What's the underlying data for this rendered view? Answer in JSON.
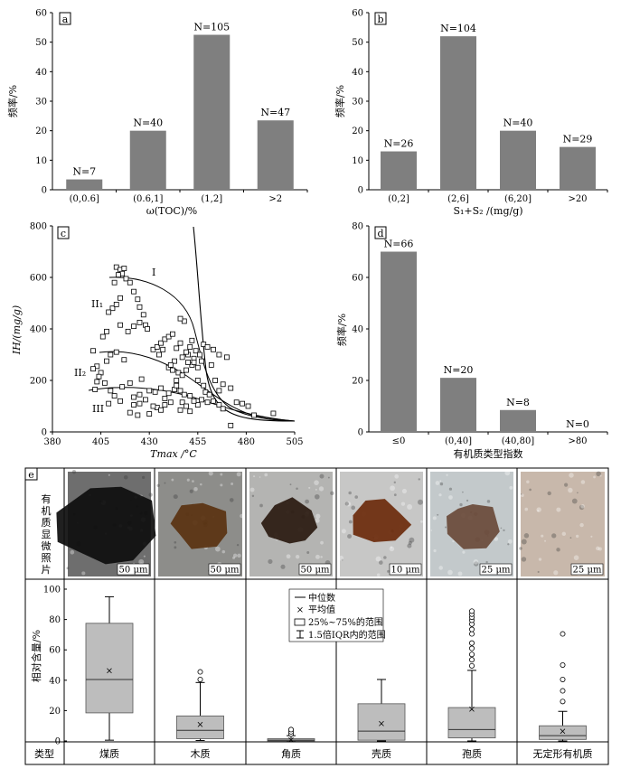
{
  "panels": {
    "a": {
      "label": "a",
      "chart_data": {
        "type": "bar",
        "categories": [
          "(0,0.6]",
          "(0.6,1]",
          "(1,2]",
          ">2"
        ],
        "values": [
          3.5,
          20.0,
          52.5,
          23.5
        ],
        "annotations": [
          "N=7",
          "N=40",
          "N=105",
          "N=47"
        ],
        "xlabel": "ω(TOC)/%",
        "ylabel": "频率/%",
        "yticks": [
          0,
          10,
          20,
          30,
          40,
          50,
          60
        ],
        "ylim": [
          0,
          60
        ]
      }
    },
    "b": {
      "label": "b",
      "chart_data": {
        "type": "bar",
        "categories": [
          "(0,2]",
          "(2,6]",
          "(6,20]",
          ">20"
        ],
        "values": [
          13.0,
          52.0,
          20.0,
          14.5
        ],
        "annotations": [
          "N=26",
          "N=104",
          "N=40",
          "N=29"
        ],
        "xlabel": "S₁+S₂ /(mg/g)",
        "ylabel": "频率/%",
        "yticks": [
          0,
          10,
          20,
          30,
          40,
          50,
          60
        ],
        "ylim": [
          0,
          60
        ]
      }
    },
    "c": {
      "label": "c",
      "chart_data": {
        "type": "scatter",
        "xlabel": "Tmax /°C",
        "ylabel": "IH/(mg/g)",
        "xticks": [
          380,
          405,
          430,
          455,
          480,
          505
        ],
        "yticks": [
          0,
          200,
          400,
          600,
          800
        ],
        "xlim": [
          380,
          505
        ],
        "ylim": [
          0,
          800
        ],
        "region_labels": [
          "I",
          "II₁",
          "II₂",
          "III"
        ],
        "points": [
          [
            413,
            640
          ],
          [
            415,
            630
          ],
          [
            417,
            635
          ],
          [
            416,
            615
          ],
          [
            414,
            610
          ],
          [
            418,
            595
          ],
          [
            420,
            580
          ],
          [
            412,
            580
          ],
          [
            422,
            545
          ],
          [
            424,
            515
          ],
          [
            415,
            520
          ],
          [
            411,
            480
          ],
          [
            409,
            465
          ],
          [
            413,
            495
          ],
          [
            425,
            485
          ],
          [
            427,
            455
          ],
          [
            425,
            425
          ],
          [
            428,
            415
          ],
          [
            429,
            400
          ],
          [
            422,
            410
          ],
          [
            419,
            390
          ],
          [
            415,
            415
          ],
          [
            408,
            390
          ],
          [
            406,
            370
          ],
          [
            401,
            315
          ],
          [
            410,
            300
          ],
          [
            413,
            310
          ],
          [
            417,
            280
          ],
          [
            408,
            275
          ],
          [
            403,
            255
          ],
          [
            401,
            245
          ],
          [
            405,
            230
          ],
          [
            404,
            215
          ],
          [
            407,
            190
          ],
          [
            402,
            165
          ],
          [
            403,
            195
          ],
          [
            410,
            160
          ],
          [
            416,
            175
          ],
          [
            420,
            190
          ],
          [
            426,
            205
          ],
          [
            412,
            140
          ],
          [
            415,
            120
          ],
          [
            409,
            110
          ],
          [
            422,
            135
          ],
          [
            425,
            145
          ],
          [
            430,
            160
          ],
          [
            433,
            155
          ],
          [
            428,
            125
          ],
          [
            425,
            110
          ],
          [
            422,
            105
          ],
          [
            420,
            75
          ],
          [
            424,
            65
          ],
          [
            430,
            70
          ],
          [
            434,
            95
          ],
          [
            436,
            85
          ],
          [
            432,
            100
          ],
          [
            438,
            105
          ],
          [
            441,
            115
          ],
          [
            438,
            130
          ],
          [
            440,
            150
          ],
          [
            436,
            170
          ],
          [
            443,
            165
          ],
          [
            446,
            160
          ],
          [
            448,
            145
          ],
          [
            451,
            140
          ],
          [
            447,
            115
          ],
          [
            449,
            100
          ],
          [
            446,
            85
          ],
          [
            451,
            80
          ],
          [
            455,
            105
          ],
          [
            457,
            125
          ],
          [
            453,
            120
          ],
          [
            460,
            115
          ],
          [
            463,
            120
          ],
          [
            466,
            105
          ],
          [
            468,
            90
          ],
          [
            472,
            25
          ],
          [
            475,
            115
          ],
          [
            478,
            110
          ],
          [
            481,
            100
          ],
          [
            484,
            65
          ],
          [
            494,
            72
          ],
          [
            440,
            250
          ],
          [
            442,
            240
          ],
          [
            445,
            230
          ],
          [
            447,
            220
          ],
          [
            449,
            240
          ],
          [
            452,
            260
          ],
          [
            455,
            250
          ],
          [
            443,
            275
          ],
          [
            447,
            290
          ],
          [
            450,
            300
          ],
          [
            453,
            285
          ],
          [
            444,
            325
          ],
          [
            446,
            345
          ],
          [
            451,
            330
          ],
          [
            454,
            315
          ],
          [
            449,
            310
          ],
          [
            452,
            355
          ],
          [
            456,
            300
          ],
          [
            432,
            320
          ],
          [
            434,
            330
          ],
          [
            436,
            345
          ],
          [
            438,
            360
          ],
          [
            440,
            370
          ],
          [
            442,
            380
          ],
          [
            437,
            320
          ],
          [
            435,
            300
          ],
          [
            448,
            430
          ],
          [
            446,
            440
          ],
          [
            458,
            340
          ],
          [
            460,
            330
          ],
          [
            463,
            320
          ],
          [
            466,
            300
          ],
          [
            470,
            290
          ],
          [
            462,
            260
          ],
          [
            464,
            200
          ],
          [
            468,
            185
          ],
          [
            472,
            170
          ],
          [
            466,
            160
          ],
          [
            455,
            200
          ],
          [
            458,
            180
          ],
          [
            459,
            155
          ],
          [
            461,
            145
          ],
          [
            444,
            200
          ],
          [
            444,
            180
          ],
          [
            441,
            260
          ],
          [
            450,
            270
          ],
          [
            453,
            270
          ],
          [
            457,
            275
          ]
        ]
      }
    },
    "d": {
      "label": "d",
      "chart_data": {
        "type": "bar",
        "categories": [
          "≤0",
          "(0,40]",
          "(40,80]",
          ">80"
        ],
        "values": [
          70.0,
          21.0,
          8.5,
          0.0
        ],
        "annotations": [
          "N=66",
          "N=20",
          "N=8",
          "N=0"
        ],
        "xlabel": "有机质类型指数",
        "ylabel": "频率/%",
        "yticks": [
          0,
          20,
          40,
          60,
          80
        ],
        "ylim": [
          0,
          80
        ]
      }
    },
    "e": {
      "label": "e",
      "row_photo_label": "有机质显微照片",
      "photos": [
        {
          "scale": "50 μm",
          "base": "#6e6e6e",
          "dark": "#0d0d0d"
        },
        {
          "scale": "50 μm",
          "base": "#8d8d8a",
          "dark": "#5a3210"
        },
        {
          "scale": "50 μm",
          "base": "#b4b4b2",
          "dark": "#2a1a10"
        },
        {
          "scale": "10 μm",
          "base": "#c7c7c6",
          "dark": "#6b2a0b"
        },
        {
          "scale": "25 μm",
          "base": "#c3c9cb",
          "dark": "#6a4a3a"
        },
        {
          "scale": "25 μm",
          "base": "#c8b8ab",
          "dark": "#5a4030"
        }
      ],
      "chart_data": {
        "type": "box",
        "ylabel": "相对含量/%",
        "yticks": [
          0,
          20,
          40,
          60,
          80,
          100
        ],
        "ylim": [
          0,
          100
        ],
        "category_header": "类型",
        "categories": [
          "煤质",
          "木质",
          "角质",
          "壳质",
          "孢质",
          "无定形有机质"
        ],
        "boxes": [
          {
            "min": 0.5,
            "q1": 18.5,
            "median": 40.5,
            "q3": 77.5,
            "max": 95,
            "mean": 46.5,
            "outliers": []
          },
          {
            "min": 0.3,
            "q1": 1.5,
            "median": 7.0,
            "q3": 16.5,
            "max": 38.5,
            "mean": 11.0,
            "outliers": [
              40.5,
              45.5
            ]
          },
          {
            "min": 0.0,
            "q1": 0.0,
            "median": 0.5,
            "q3": 1.5,
            "max": 3.5,
            "mean": 0.8,
            "outliers": [
              4.5,
              6.0,
              7.5
            ]
          },
          {
            "min": 0.0,
            "q1": 0.5,
            "median": 6.5,
            "q3": 24.5,
            "max": 40.5,
            "mean": 11.5,
            "outliers": []
          },
          {
            "min": 0.0,
            "q1": 2.0,
            "median": 7.5,
            "q3": 22.0,
            "max": 46.5,
            "mean": 21.0,
            "outliers": [
              49.5,
              53.5,
              57.0,
              61.0,
              64.5,
              70.5,
              73.5,
              77.0,
              79.5,
              81.5,
              83.5,
              85.5
            ]
          },
          {
            "min": 0.0,
            "q1": 1.0,
            "median": 3.5,
            "q3": 10.0,
            "max": 19.5,
            "mean": 6.5,
            "outliers": [
              26.0,
              33.0,
              40.5,
              50.0,
              70.5
            ]
          }
        ],
        "legend": [
          "中位数",
          "平均值",
          "25%~75%的范围",
          "1.5倍IQR内的范围"
        ]
      }
    }
  }
}
